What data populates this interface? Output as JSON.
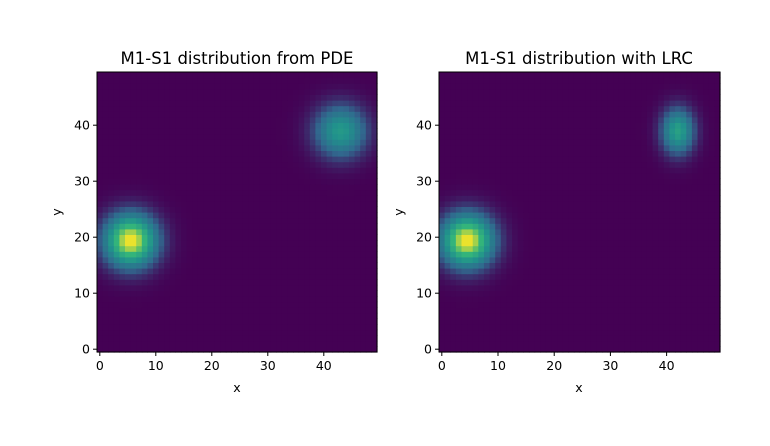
{
  "colormap": {
    "name": "viridis",
    "low": "#440154",
    "mid_low": "#31688e",
    "mid": "#21918c",
    "mid_high": "#35b779",
    "high": "#fde725"
  },
  "chart_data": [
    {
      "type": "heatmap",
      "title": "M1-S1 distribution from PDE",
      "xlabel": "x",
      "ylabel": "y",
      "grid": false,
      "xlim": [
        -0.5,
        49.5
      ],
      "ylim": [
        -0.5,
        49.5
      ],
      "xticks": [
        0,
        10,
        20,
        30,
        40
      ],
      "yticks": [
        0,
        10,
        20,
        30,
        40
      ],
      "blobs": [
        {
          "cx": 5.5,
          "cy": 19.5,
          "sigma_x": 3.2,
          "sigma_y": 3.2,
          "peak": 1.0
        },
        {
          "cx": 43.0,
          "cy": 39.0,
          "sigma_x": 3.2,
          "sigma_y": 3.2,
          "peak": 0.55
        }
      ]
    },
    {
      "type": "heatmap",
      "title": "M1-S1 distribution with LRC",
      "xlabel": "x",
      "ylabel": "y",
      "grid": false,
      "xlim": [
        -0.5,
        49.5
      ],
      "ylim": [
        -0.5,
        49.5
      ],
      "xticks": [
        0,
        10,
        20,
        30,
        40
      ],
      "yticks": [
        0,
        10,
        20,
        30,
        40
      ],
      "blobs": [
        {
          "cx": 4.5,
          "cy": 19.5,
          "sigma_x": 3.2,
          "sigma_y": 3.2,
          "peak": 1.0
        },
        {
          "cx": 42.0,
          "cy": 39.0,
          "sigma_x": 2.0,
          "sigma_y": 2.8,
          "peak": 0.6
        }
      ]
    }
  ]
}
